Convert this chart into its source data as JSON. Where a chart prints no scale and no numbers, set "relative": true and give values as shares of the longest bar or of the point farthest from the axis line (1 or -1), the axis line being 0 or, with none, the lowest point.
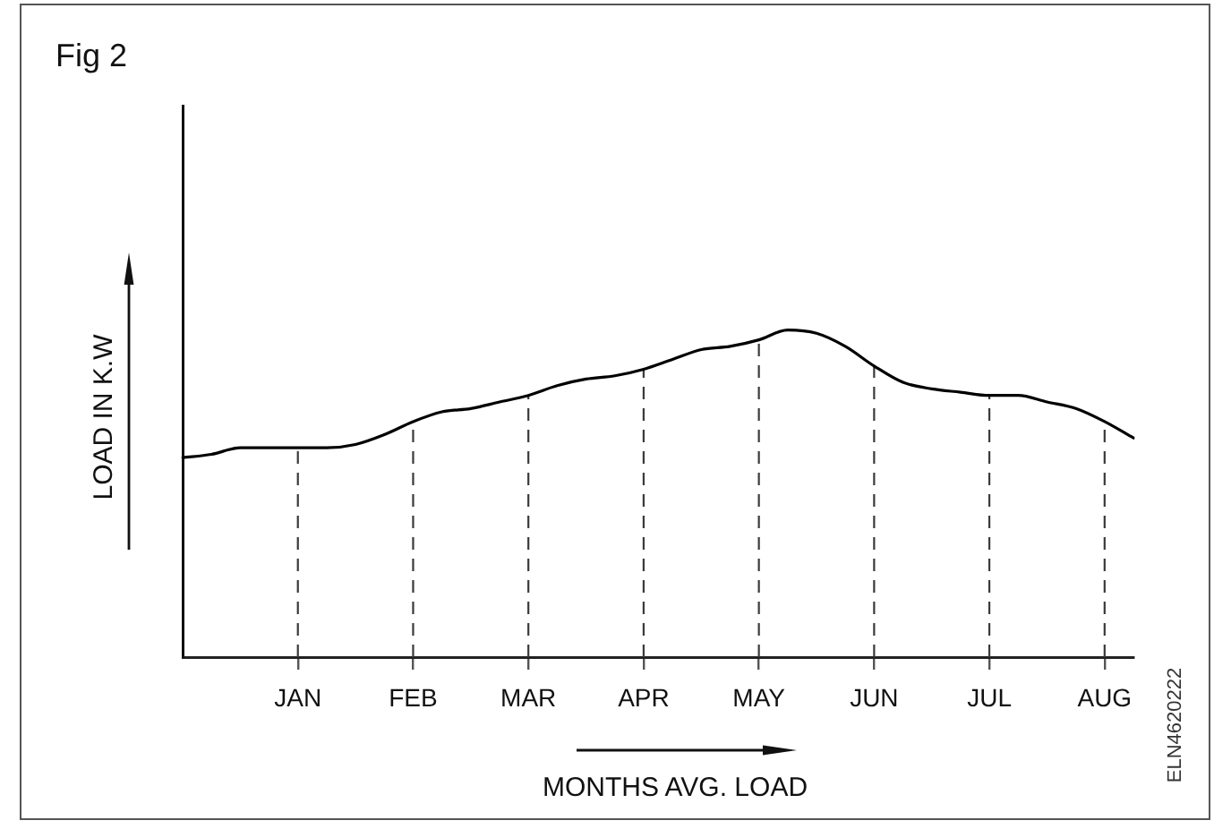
{
  "chart_data": {
    "type": "line",
    "title": "Fig 2",
    "xlabel": "MONTHS AVG. LOAD",
    "ylabel": "LOAD IN K.W",
    "annotations": [
      "ELN4620222"
    ],
    "relative": true,
    "categories": [
      null,
      null,
      null,
      null,
      "JAN",
      null,
      null,
      null,
      "FEB",
      null,
      null,
      null,
      "MAR",
      null,
      null,
      null,
      "APR",
      null,
      null,
      null,
      "MAY",
      null,
      null,
      null,
      "JUN",
      null,
      null,
      null,
      "JUL",
      null,
      null,
      null,
      "AUG",
      null
    ],
    "series": [
      {
        "color": "#000000",
        "values": [
          0.61,
          0.62,
          0.64,
          0.64,
          0.64,
          0.64,
          0.65,
          0.68,
          0.72,
          0.75,
          0.76,
          0.78,
          0.8,
          0.83,
          0.85,
          0.86,
          0.88,
          0.91,
          0.94,
          0.95,
          0.97,
          1,
          0.99,
          0.95,
          0.89,
          0.84,
          0.82,
          0.81,
          0.8,
          0.8,
          0.78,
          0.76,
          0.72,
          0.67
        ]
      }
    ],
    "grid": "x",
    "line_style": "solid"
  }
}
